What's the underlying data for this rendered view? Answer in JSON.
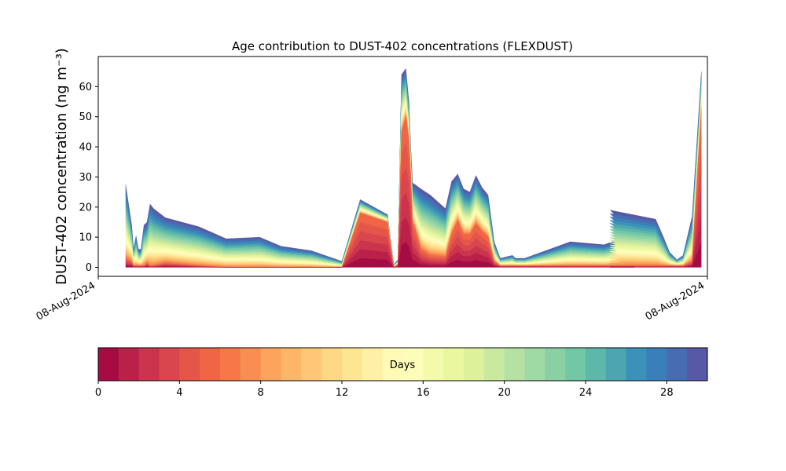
{
  "chart_data": {
    "type": "area",
    "stacked": true,
    "title": "Age contribution to DUST-402 concentrations (FLEXDUST)",
    "ylabel": "DUST-402 concentration (ng m⁻³)",
    "xlabel": "",
    "x_tick_labels": [
      "08-Aug-2024",
      "08-Aug-2024"
    ],
    "ylim": [
      -3,
      70
    ],
    "y_ticks": [
      0,
      10,
      20,
      30,
      40,
      50,
      60
    ],
    "grid": false,
    "colormap": "Spectral",
    "colorbar": {
      "label": "Days",
      "ticks": [
        0,
        4,
        8,
        12,
        16,
        20,
        24,
        28
      ],
      "range": [
        0,
        30
      ],
      "n_bins": 30
    },
    "x_range": [
      0,
      100
    ],
    "x": [
      4.5,
      5.5,
      5.8,
      6.2,
      6.6,
      7.0,
      7.5,
      8.0,
      8.5,
      9.1,
      11.0,
      16.5,
      21.0,
      26.5,
      30.0,
      35.0,
      40.0,
      43.0,
      47.5,
      48.5,
      49.2,
      49.8,
      50.5,
      51.0,
      51.3,
      51.6,
      52.0,
      53.0,
      54.5,
      57.0,
      58.0,
      59.0,
      60.0,
      61.0,
      62.0,
      63.0,
      64.0,
      65.0,
      66.0,
      68.0,
      68.5,
      69.0,
      70.0,
      77.5,
      83.0,
      88.0,
      84.0,
      91.5,
      92.8,
      93.8,
      95.0,
      96.0,
      97.5,
      99.0
    ],
    "total": [
      27.5,
      14.0,
      6.0,
      10.5,
      6.0,
      6.0,
      14.0,
      15.0,
      21.0,
      19.5,
      16.5,
      13.5,
      9.5,
      10.0,
      7.0,
      5.5,
      2.0,
      22.5,
      17.5,
      1.0,
      2.5,
      64.0,
      66.0,
      55.0,
      40.0,
      28.0,
      27.5,
      26.0,
      24.0,
      19.5,
      28.5,
      31.0,
      26.0,
      25.0,
      30.5,
      26.5,
      24.0,
      8.5,
      3.0,
      4.0,
      3.0,
      3.0,
      3.0,
      8.5,
      7.5,
      11.0,
      19.0,
      16.0,
      10.0,
      5.0,
      2.5,
      4.0,
      17.0,
      65.0
    ],
    "fresh_max_0_6_days": [
      3.0,
      2.0,
      0.5,
      0.5,
      0.5,
      0.5,
      0.5,
      1.5,
      0.5,
      0.5,
      1.5,
      0.5,
      0.0,
      0.0,
      0.0,
      0.0,
      0.0,
      18.0,
      15.0,
      0.0,
      1.0,
      45.0,
      50.0,
      42.0,
      30.0,
      15.0,
      13.0,
      6.0,
      4.0,
      3.5,
      11.0,
      15.5,
      11.0,
      11.0,
      14.5,
      12.0,
      10.0,
      2.0,
      0.5,
      0.5,
      0.5,
      0.5,
      0.5,
      0.5,
      0.5,
      0.5,
      0.5,
      0.5,
      0.5,
      0.5,
      0.5,
      0.5,
      2.0,
      52.0
    ]
  }
}
